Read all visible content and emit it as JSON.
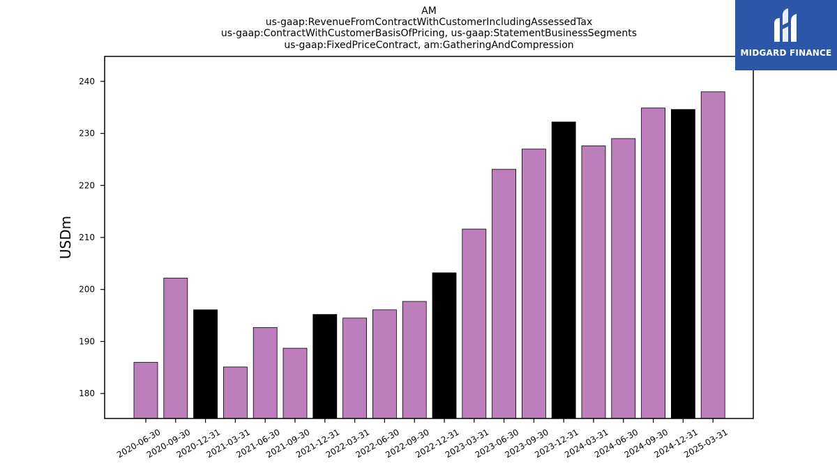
{
  "colors": {
    "normal": "#bc7fbc",
    "year_end": "#000000",
    "logo_bg": "#2c56a8"
  },
  "logo": {
    "text": "MIDGARD FINANCE",
    "icon": "midgard-logo-icon"
  },
  "chart_data": {
    "type": "bar",
    "title": [
      "AM",
      "us-gaap:RevenueFromContractWithCustomerIncludingAssessedTax",
      "us-gaap:ContractWithCustomerBasisOfPricing, us-gaap:StatementBusinessSegments",
      "us-gaap:FixedPriceContract, am:GatheringAndCompression"
    ],
    "xlabel": "",
    "ylabel": "USDm",
    "ylim": [
      175.2,
      244.8
    ],
    "yticks": [
      180,
      190,
      200,
      210,
      220,
      230,
      240
    ],
    "grid": false,
    "categories": [
      "2020-06-30",
      "2020-09-30",
      "2020-12-31",
      "2021-03-31",
      "2021-06-30",
      "2021-09-30",
      "2021-12-31",
      "2022-03-31",
      "2022-06-30",
      "2022-09-30",
      "2022-12-31",
      "2023-03-31",
      "2023-06-30",
      "2023-09-30",
      "2023-12-31",
      "2024-03-31",
      "2024-06-30",
      "2024-09-30",
      "2024-12-31",
      "2025-03-31"
    ],
    "values": [
      186.0,
      202.2,
      196.1,
      185.1,
      192.7,
      188.7,
      195.2,
      194.5,
      196.1,
      197.7,
      203.2,
      211.6,
      223.1,
      227.0,
      232.2,
      227.6,
      229.0,
      234.9,
      234.6,
      238.0
    ],
    "highlight_year_end": [
      false,
      false,
      true,
      false,
      false,
      false,
      true,
      false,
      false,
      false,
      true,
      false,
      false,
      false,
      true,
      false,
      false,
      false,
      true,
      false
    ]
  }
}
